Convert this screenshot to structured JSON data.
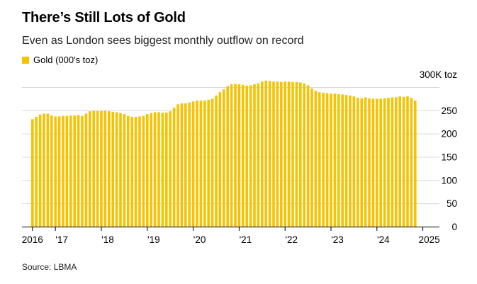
{
  "title": "There’s Still Lots of Gold",
  "subtitle": "Even as London sees biggest monthly outflow on record",
  "source": "Source: LBMA",
  "colors": {
    "bar": "#f7c300",
    "grid": "#d9d9d9",
    "axis": "#000000"
  },
  "chart_data": {
    "type": "bar",
    "legend": [
      "Gold (000's toz)"
    ],
    "series_name": "Gold (000's toz)",
    "unit_label": "300K toz",
    "ylim": [
      0,
      300
    ],
    "ytick_values": [
      0,
      50,
      100,
      150,
      200,
      250,
      300
    ],
    "ytick_labels": [
      "0",
      "50",
      "100",
      "150",
      "200",
      "250",
      "300K toz"
    ],
    "xtick_labels": [
      "2016",
      "'17",
      "'18",
      "'19",
      "'20",
      "'21",
      "'22",
      "'23",
      "'24",
      "2025"
    ],
    "start": "2016-07",
    "values": [
      231,
      236,
      241,
      243,
      243,
      239,
      237,
      237,
      238,
      238,
      239,
      239,
      240,
      238,
      243,
      248,
      249,
      249,
      249,
      249,
      248,
      247,
      246,
      244,
      242,
      238,
      236,
      236,
      237,
      238,
      242,
      244,
      246,
      246,
      245,
      245,
      248,
      256,
      263,
      265,
      265,
      267,
      269,
      271,
      271,
      271,
      273,
      275,
      282,
      289,
      295,
      302,
      306,
      307,
      306,
      305,
      303,
      304,
      306,
      308,
      312,
      314,
      313,
      312,
      312,
      311,
      312,
      312,
      311,
      311,
      310,
      308,
      304,
      297,
      292,
      289,
      288,
      287,
      286,
      286,
      285,
      284,
      283,
      282,
      280,
      277,
      276,
      278,
      276,
      275,
      275,
      275,
      276,
      277,
      278,
      278,
      280,
      279,
      280,
      277,
      271
    ]
  }
}
